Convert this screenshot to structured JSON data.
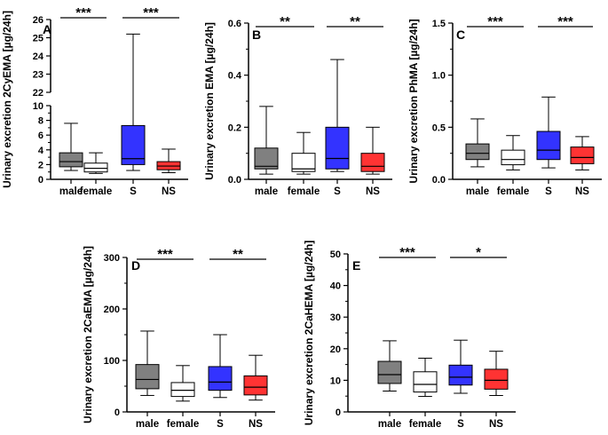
{
  "colors": {
    "male": "#808080",
    "female": "#ffffff",
    "S": "#3333ff",
    "NS": "#ff3333",
    "axis": "#000000"
  },
  "chart_data": [
    {
      "type": "box",
      "panel": "A",
      "ylabel": "Urinary excretion 2CyEMA [µg/24h]",
      "axis_break": true,
      "lower_range": [
        0,
        10
      ],
      "lower_ticks": [
        "0",
        "2",
        "4",
        "6",
        "8",
        "10"
      ],
      "upper_range": [
        22,
        26
      ],
      "upper_ticks": [
        "22",
        "23",
        "24",
        "25",
        "26"
      ],
      "categories": [
        "male",
        "female",
        "S",
        "NS"
      ],
      "boxes": [
        {
          "group": "male",
          "min": 1.2,
          "q1": 1.7,
          "median": 2.4,
          "q3": 3.6,
          "max": 7.6,
          "fill": "#808080"
        },
        {
          "group": "female",
          "min": 0.8,
          "q1": 1.0,
          "median": 1.5,
          "q3": 2.2,
          "max": 3.6,
          "fill": "#ffffff"
        },
        {
          "group": "S",
          "min": 1.2,
          "q1": 2.0,
          "median": 2.8,
          "q3": 7.3,
          "max": 25.2,
          "fill": "#3333ff"
        },
        {
          "group": "NS",
          "min": 0.9,
          "q1": 1.3,
          "median": 1.8,
          "q3": 2.4,
          "max": 4.1,
          "fill": "#ff3333"
        }
      ],
      "significance": [
        {
          "between": [
            "male",
            "female"
          ],
          "label": "***"
        },
        {
          "between": [
            "S",
            "NS"
          ],
          "label": "***"
        }
      ]
    },
    {
      "type": "box",
      "panel": "B",
      "ylabel": "Urinary excretion EMA [µg/24h]",
      "ylim": [
        0,
        0.6
      ],
      "ticks": [
        "0.0",
        "0.2",
        "0.4",
        "0.6"
      ],
      "categories": [
        "male",
        "female",
        "S",
        "NS"
      ],
      "boxes": [
        {
          "group": "male",
          "min": 0.02,
          "q1": 0.04,
          "median": 0.05,
          "q3": 0.12,
          "max": 0.28,
          "fill": "#808080"
        },
        {
          "group": "female",
          "min": 0.02,
          "q1": 0.03,
          "median": 0.04,
          "q3": 0.1,
          "max": 0.18,
          "fill": "#ffffff"
        },
        {
          "group": "S",
          "min": 0.03,
          "q1": 0.04,
          "median": 0.08,
          "q3": 0.2,
          "max": 0.46,
          "fill": "#3333ff"
        },
        {
          "group": "NS",
          "min": 0.02,
          "q1": 0.03,
          "median": 0.05,
          "q3": 0.1,
          "max": 0.2,
          "fill": "#ff3333"
        }
      ],
      "significance": [
        {
          "between": [
            "male",
            "female"
          ],
          "label": "**"
        },
        {
          "between": [
            "S",
            "NS"
          ],
          "label": "**"
        }
      ]
    },
    {
      "type": "box",
      "panel": "C",
      "ylabel": "Urinary excretion PhMA [µg/24h]",
      "ylim": [
        0,
        1.5
      ],
      "ticks": [
        "0.0",
        "0.5",
        "1.0",
        "1.5"
      ],
      "categories": [
        "male",
        "female",
        "S",
        "NS"
      ],
      "boxes": [
        {
          "group": "male",
          "min": 0.12,
          "q1": 0.19,
          "median": 0.25,
          "q3": 0.34,
          "max": 0.58,
          "fill": "#808080"
        },
        {
          "group": "female",
          "min": 0.09,
          "q1": 0.14,
          "median": 0.19,
          "q3": 0.28,
          "max": 0.42,
          "fill": "#ffffff"
        },
        {
          "group": "S",
          "min": 0.11,
          "q1": 0.19,
          "median": 0.28,
          "q3": 0.46,
          "max": 0.79,
          "fill": "#3333ff"
        },
        {
          "group": "NS",
          "min": 0.09,
          "q1": 0.15,
          "median": 0.21,
          "q3": 0.31,
          "max": 0.41,
          "fill": "#ff3333"
        }
      ],
      "significance": [
        {
          "between": [
            "male",
            "female"
          ],
          "label": "***"
        },
        {
          "between": [
            "S",
            "NS"
          ],
          "label": "***"
        }
      ]
    },
    {
      "type": "box",
      "panel": "D",
      "ylabel": "Urinary excretion 2CaEMA [µg/24h]",
      "ylim": [
        0,
        300
      ],
      "ticks": [
        "0",
        "100",
        "200",
        "300"
      ],
      "categories": [
        "male",
        "female",
        "S",
        "NS"
      ],
      "boxes": [
        {
          "group": "male",
          "min": 32,
          "q1": 45,
          "median": 63,
          "q3": 92,
          "max": 157,
          "fill": "#808080"
        },
        {
          "group": "female",
          "min": 21,
          "q1": 30,
          "median": 42,
          "q3": 57,
          "max": 90,
          "fill": "#ffffff"
        },
        {
          "group": "S",
          "min": 28,
          "q1": 42,
          "median": 58,
          "q3": 88,
          "max": 150,
          "fill": "#3333ff"
        },
        {
          "group": "NS",
          "min": 23,
          "q1": 33,
          "median": 48,
          "q3": 70,
          "max": 110,
          "fill": "#ff3333"
        }
      ],
      "significance": [
        {
          "between": [
            "male",
            "female"
          ],
          "label": "***"
        },
        {
          "between": [
            "S",
            "NS"
          ],
          "label": "**"
        }
      ]
    },
    {
      "type": "box",
      "panel": "E",
      "ylabel": "Urinary excretion 2CaHEMA [µg/24h]",
      "ylim": [
        0,
        50
      ],
      "ticks": [
        "0",
        "10",
        "20",
        "30",
        "40",
        "50"
      ],
      "categories": [
        "male",
        "female",
        "S",
        "NS"
      ],
      "boxes": [
        {
          "group": "male",
          "min": 6.6,
          "q1": 9.0,
          "median": 11.8,
          "q3": 16.0,
          "max": 22.5,
          "fill": "#808080"
        },
        {
          "group": "female",
          "min": 4.9,
          "q1": 6.3,
          "median": 8.7,
          "q3": 12.7,
          "max": 17.0,
          "fill": "#ffffff"
        },
        {
          "group": "S",
          "min": 5.9,
          "q1": 8.5,
          "median": 11.0,
          "q3": 14.8,
          "max": 22.7,
          "fill": "#3333ff"
        },
        {
          "group": "NS",
          "min": 5.2,
          "q1": 7.2,
          "median": 10.0,
          "q3": 13.5,
          "max": 19.2,
          "fill": "#ff3333"
        }
      ],
      "significance": [
        {
          "between": [
            "male",
            "female"
          ],
          "label": "***"
        },
        {
          "between": [
            "S",
            "NS"
          ],
          "label": "*"
        }
      ]
    }
  ]
}
